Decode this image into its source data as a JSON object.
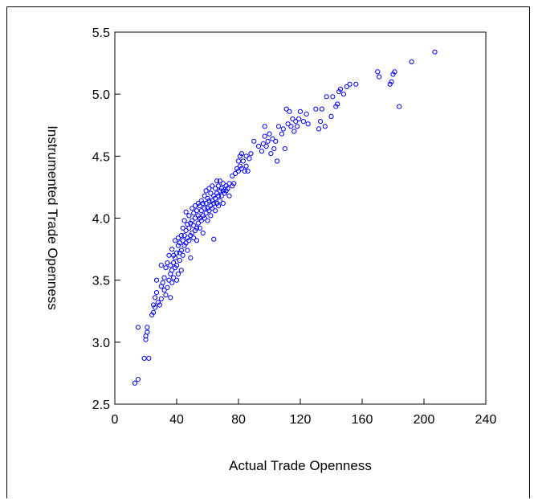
{
  "chart_data": {
    "type": "scatter",
    "title": "",
    "xlabel": "Actual Trade Openness",
    "ylabel": "Instrumented Trade Openness",
    "xlim": [
      0,
      240
    ],
    "ylim": [
      2.5,
      5.5
    ],
    "x_ticks": [
      0,
      40,
      80,
      120,
      160,
      200,
      240
    ],
    "y_ticks": [
      2.5,
      3.0,
      3.5,
      4.0,
      4.5,
      5.0,
      5.5
    ],
    "x_tick_labels": [
      "0",
      "40",
      "80",
      "120",
      "160",
      "200",
      "240"
    ],
    "y_tick_labels": [
      "2.5",
      "3.0",
      "3.5",
      "4.0",
      "4.5",
      "5.0",
      "5.5"
    ],
    "marker_color": "#0000ff",
    "grid": false,
    "points": [
      [
        13,
        2.67
      ],
      [
        15,
        2.7
      ],
      [
        15,
        3.12
      ],
      [
        19,
        2.87
      ],
      [
        20,
        3.02
      ],
      [
        20,
        3.05
      ],
      [
        21,
        3.08
      ],
      [
        21,
        3.12
      ],
      [
        22,
        2.87
      ],
      [
        24,
        3.22
      ],
      [
        25,
        3.24
      ],
      [
        25,
        3.3
      ],
      [
        26,
        3.28
      ],
      [
        26,
        3.36
      ],
      [
        27,
        3.4
      ],
      [
        27,
        3.5
      ],
      [
        28,
        3.32
      ],
      [
        29,
        3.3
      ],
      [
        30,
        3.35
      ],
      [
        30,
        3.45
      ],
      [
        30,
        3.62
      ],
      [
        31,
        3.48
      ],
      [
        32,
        3.42
      ],
      [
        32,
        3.52
      ],
      [
        33,
        3.38
      ],
      [
        33,
        3.6
      ],
      [
        34,
        3.44
      ],
      [
        34,
        3.64
      ],
      [
        35,
        3.5
      ],
      [
        35,
        3.7
      ],
      [
        36,
        3.36
      ],
      [
        36,
        3.55
      ],
      [
        36,
        3.62
      ],
      [
        37,
        3.48
      ],
      [
        37,
        3.58
      ],
      [
        37,
        3.75
      ],
      [
        38,
        3.52
      ],
      [
        38,
        3.64
      ],
      [
        38,
        3.7
      ],
      [
        39,
        3.6
      ],
      [
        39,
        3.68
      ],
      [
        39,
        3.82
      ],
      [
        40,
        3.5
      ],
      [
        40,
        3.62
      ],
      [
        40,
        3.72
      ],
      [
        41,
        3.55
      ],
      [
        41,
        3.78
      ],
      [
        41,
        3.84
      ],
      [
        42,
        3.66
      ],
      [
        42,
        3.8
      ],
      [
        42,
        3.72
      ],
      [
        43,
        3.58
      ],
      [
        43,
        3.74
      ],
      [
        43,
        3.86
      ],
      [
        44,
        3.7
      ],
      [
        44,
        3.82
      ],
      [
        44,
        3.92
      ],
      [
        45,
        3.78
      ],
      [
        45,
        3.86
      ],
      [
        45,
        3.98
      ],
      [
        46,
        3.8
      ],
      [
        46,
        3.9
      ],
      [
        46,
        4.05
      ],
      [
        47,
        3.74
      ],
      [
        47,
        3.84
      ],
      [
        47,
        3.95
      ],
      [
        48,
        3.82
      ],
      [
        48,
        3.92
      ],
      [
        48,
        4.02
      ],
      [
        49,
        3.68
      ],
      [
        49,
        3.86
      ],
      [
        49,
        3.96
      ],
      [
        50,
        3.88
      ],
      [
        50,
        3.98
      ],
      [
        50,
        4.08
      ],
      [
        51,
        3.84
      ],
      [
        51,
        3.94
      ],
      [
        51,
        4.04
      ],
      [
        52,
        3.9
      ],
      [
        52,
        4.0
      ],
      [
        52,
        4.1
      ],
      [
        53,
        3.82
      ],
      [
        53,
        3.92
      ],
      [
        53,
        4.06
      ],
      [
        54,
        3.96
      ],
      [
        54,
        4.02
      ],
      [
        54,
        4.12
      ],
      [
        55,
        3.92
      ],
      [
        55,
        4.0
      ],
      [
        55,
        4.1
      ],
      [
        56,
        3.98
      ],
      [
        56,
        4.06
      ],
      [
        56,
        4.14
      ],
      [
        57,
        3.88
      ],
      [
        57,
        4.02
      ],
      [
        57,
        4.12
      ],
      [
        58,
        4.0
      ],
      [
        58,
        4.08
      ],
      [
        58,
        4.18
      ],
      [
        59,
        4.04
      ],
      [
        59,
        4.12
      ],
      [
        59,
        4.22
      ],
      [
        60,
        3.98
      ],
      [
        60,
        4.08
      ],
      [
        60,
        4.16
      ],
      [
        61,
        4.06
      ],
      [
        61,
        4.14
      ],
      [
        61,
        4.24
      ],
      [
        62,
        4.02
      ],
      [
        62,
        4.1
      ],
      [
        62,
        4.2
      ],
      [
        63,
        4.08
      ],
      [
        63,
        4.14
      ],
      [
        63,
        4.26
      ],
      [
        64,
        3.83
      ],
      [
        64,
        4.12
      ],
      [
        64,
        4.18
      ],
      [
        65,
        4.06
      ],
      [
        65,
        4.16
      ],
      [
        65,
        4.24
      ],
      [
        66,
        4.12
      ],
      [
        66,
        4.2
      ],
      [
        66,
        4.3
      ],
      [
        67,
        4.1
      ],
      [
        67,
        4.18
      ],
      [
        67,
        4.26
      ],
      [
        68,
        4.14
      ],
      [
        68,
        4.22
      ],
      [
        68,
        4.3
      ],
      [
        69,
        4.18
      ],
      [
        69,
        4.24
      ],
      [
        70,
        4.12
      ],
      [
        70,
        4.22
      ],
      [
        70,
        4.28
      ],
      [
        71,
        4.2
      ],
      [
        72,
        4.22
      ],
      [
        72,
        4.26
      ],
      [
        73,
        4.24
      ],
      [
        74,
        4.18
      ],
      [
        74,
        4.28
      ],
      [
        76,
        4.26
      ],
      [
        76,
        4.34
      ],
      [
        77,
        4.28
      ],
      [
        78,
        4.36
      ],
      [
        79,
        4.4
      ],
      [
        80,
        4.38
      ],
      [
        80,
        4.46
      ],
      [
        81,
        4.42
      ],
      [
        81,
        4.5
      ],
      [
        82,
        4.52
      ],
      [
        82,
        4.4
      ],
      [
        83,
        4.46
      ],
      [
        84,
        4.38
      ],
      [
        85,
        4.42
      ],
      [
        85,
        4.5
      ],
      [
        86,
        4.38
      ],
      [
        87,
        4.48
      ],
      [
        88,
        4.52
      ],
      [
        90,
        4.62
      ],
      [
        93,
        4.58
      ],
      [
        95,
        4.54
      ],
      [
        96,
        4.6
      ],
      [
        97,
        4.66
      ],
      [
        97,
        4.74
      ],
      [
        98,
        4.58
      ],
      [
        99,
        4.62
      ],
      [
        100,
        4.68
      ],
      [
        101,
        4.52
      ],
      [
        102,
        4.64
      ],
      [
        103,
        4.56
      ],
      [
        104,
        4.62
      ],
      [
        105,
        4.46
      ],
      [
        106,
        4.74
      ],
      [
        108,
        4.68
      ],
      [
        109,
        4.72
      ],
      [
        110,
        4.56
      ],
      [
        111,
        4.88
      ],
      [
        112,
        4.76
      ],
      [
        113,
        4.86
      ],
      [
        114,
        4.74
      ],
      [
        115,
        4.8
      ],
      [
        116,
        4.7
      ],
      [
        117,
        4.78
      ],
      [
        118,
        4.74
      ],
      [
        119,
        4.8
      ],
      [
        120,
        4.86
      ],
      [
        122,
        4.78
      ],
      [
        124,
        4.84
      ],
      [
        125,
        4.76
      ],
      [
        130,
        4.88
      ],
      [
        132,
        4.72
      ],
      [
        133,
        4.78
      ],
      [
        134,
        4.88
      ],
      [
        136,
        4.74
      ],
      [
        137,
        4.98
      ],
      [
        140,
        4.82
      ],
      [
        141,
        4.98
      ],
      [
        143,
        4.9
      ],
      [
        144,
        4.92
      ],
      [
        145,
        5.02
      ],
      [
        146,
        5.04
      ],
      [
        148,
        5.0
      ],
      [
        150,
        5.06
      ],
      [
        152,
        5.08
      ],
      [
        156,
        5.08
      ],
      [
        170,
        5.18
      ],
      [
        171,
        5.14
      ],
      [
        178,
        5.08
      ],
      [
        179,
        5.1
      ],
      [
        180,
        5.16
      ],
      [
        181,
        5.18
      ],
      [
        184,
        4.9
      ],
      [
        192,
        5.26
      ],
      [
        207,
        5.34
      ]
    ]
  }
}
